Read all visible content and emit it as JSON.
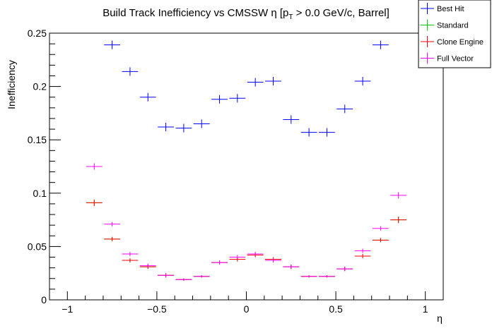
{
  "chart_data": {
    "type": "scatter",
    "title": "Build Track Inefficiency vs CMSSW η [p",
    "title_sub": "T",
    "title_tail": " > 0.0 GeV/c, Barrel]",
    "xlabel": "η",
    "ylabel": "Inefficiency",
    "xlim": [
      -1.1,
      1.1
    ],
    "ylim": [
      0,
      0.25
    ],
    "bin_half_width": 0.045,
    "x_ticks": [
      -1,
      -0.5,
      0,
      0.5,
      1
    ],
    "x_tick_labels": [
      "−1",
      "−0.5",
      "0",
      "0.5",
      "1"
    ],
    "y_ticks": [
      0,
      0.05,
      0.1,
      0.15,
      0.2,
      0.25
    ],
    "y_tick_labels": [
      "0",
      "0.05",
      "0.1",
      "0.15",
      "0.2",
      "0.25"
    ],
    "legend_position": "top-right",
    "x": [
      -0.85,
      -0.75,
      -0.65,
      -0.55,
      -0.45,
      -0.35,
      -0.25,
      -0.15,
      -0.05,
      0.05,
      0.15,
      0.25,
      0.35,
      0.45,
      0.55,
      0.65,
      0.75,
      0.85
    ],
    "series": [
      {
        "name": "Best Hit",
        "color": "#0000ff",
        "x": [
          -0.75,
          -0.65,
          -0.55,
          -0.45,
          -0.35,
          -0.25,
          -0.15,
          -0.05,
          0.05,
          0.15,
          0.25,
          0.35,
          0.45,
          0.55,
          0.65,
          0.75
        ],
        "values": [
          0.239,
          0.214,
          0.19,
          0.162,
          0.161,
          0.165,
          0.188,
          0.189,
          0.204,
          0.205,
          0.169,
          0.157,
          0.157,
          0.179,
          0.205,
          0.239
        ],
        "err": [
          0.004,
          0.004,
          0.004,
          0.004,
          0.004,
          0.004,
          0.004,
          0.004,
          0.004,
          0.004,
          0.004,
          0.004,
          0.004,
          0.004,
          0.004,
          0.004
        ]
      },
      {
        "name": "Standard",
        "color": "#00cc00",
        "x": [
          -0.85,
          -0.75,
          -0.65,
          -0.55,
          -0.45,
          -0.35,
          -0.25,
          -0.15,
          -0.05,
          0.05,
          0.15,
          0.25,
          0.35,
          0.45,
          0.55,
          0.65,
          0.75,
          0.85
        ],
        "values": [
          0.091,
          0.057,
          0.037,
          0.031,
          0.023,
          0.019,
          0.022,
          0.035,
          0.038,
          0.042,
          0.038,
          0.031,
          0.022,
          0.022,
          0.029,
          0.041,
          0.056,
          0.075
        ],
        "err": [
          0.003,
          0.002,
          0.002,
          0.002,
          0.002,
          0.001,
          0.001,
          0.002,
          0.002,
          0.002,
          0.002,
          0.002,
          0.001,
          0.001,
          0.002,
          0.002,
          0.002,
          0.003
        ]
      },
      {
        "name": "Clone Engine",
        "color": "#ff0000",
        "x": [
          -0.85,
          -0.75,
          -0.65,
          -0.55,
          -0.45,
          -0.35,
          -0.25,
          -0.15,
          -0.05,
          0.05,
          0.15,
          0.25,
          0.35,
          0.45,
          0.55,
          0.65,
          0.75,
          0.85
        ],
        "values": [
          0.091,
          0.057,
          0.037,
          0.031,
          0.023,
          0.019,
          0.022,
          0.035,
          0.038,
          0.042,
          0.038,
          0.031,
          0.022,
          0.022,
          0.029,
          0.041,
          0.056,
          0.075
        ],
        "err": [
          0.003,
          0.002,
          0.002,
          0.002,
          0.002,
          0.001,
          0.001,
          0.002,
          0.002,
          0.002,
          0.002,
          0.002,
          0.001,
          0.001,
          0.002,
          0.002,
          0.002,
          0.003
        ]
      },
      {
        "name": "Full Vector",
        "color": "#ff00ff",
        "x": [
          -0.85,
          -0.75,
          -0.65,
          -0.55,
          -0.45,
          -0.35,
          -0.25,
          -0.15,
          -0.05,
          0.05,
          0.15,
          0.25,
          0.35,
          0.45,
          0.55,
          0.65,
          0.75,
          0.85
        ],
        "values": [
          0.125,
          0.071,
          0.043,
          0.032,
          0.023,
          0.019,
          0.022,
          0.035,
          0.04,
          0.043,
          0.037,
          0.031,
          0.022,
          0.022,
          0.029,
          0.046,
          0.067,
          0.098
        ],
        "err": [
          0.003,
          0.002,
          0.002,
          0.002,
          0.002,
          0.001,
          0.001,
          0.002,
          0.002,
          0.002,
          0.002,
          0.002,
          0.001,
          0.001,
          0.002,
          0.002,
          0.002,
          0.003
        ]
      }
    ]
  }
}
